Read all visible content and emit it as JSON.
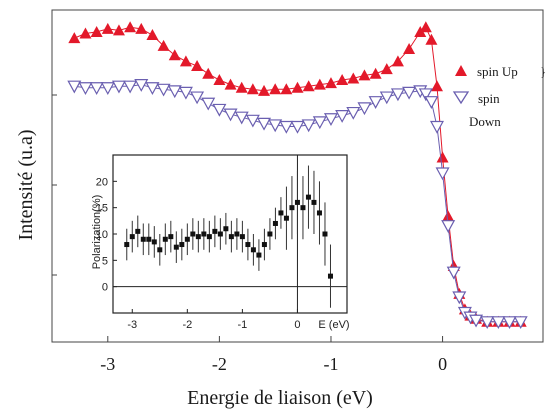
{
  "chart_data": [
    {
      "type": "scatter",
      "xlabel": "Energie de liaison (eV)",
      "ylabel": "Intensité (u.a)",
      "xlim": [
        -3.5,
        0.9
      ],
      "ylim": [
        0,
        1
      ],
      "x_ticks": [
        "-3",
        "-2",
        "-1",
        "0"
      ],
      "x_tick_values": [
        -3,
        -2,
        -1,
        0
      ],
      "grid": false,
      "legend": "right",
      "series": [
        {
          "name": "spin Up",
          "marker": "triangle-up",
          "color": "#e3192a",
          "x": [
            -3.3,
            -3.2,
            -3.1,
            -3.0,
            -2.9,
            -2.8,
            -2.7,
            -2.6,
            -2.5,
            -2.4,
            -2.3,
            -2.2,
            -2.1,
            -2.0,
            -1.9,
            -1.8,
            -1.7,
            -1.6,
            -1.5,
            -1.4,
            -1.3,
            -1.2,
            -1.1,
            -1.0,
            -0.9,
            -0.8,
            -0.7,
            -0.6,
            -0.5,
            -0.4,
            -0.3,
            -0.2,
            -0.15,
            -0.1,
            -0.05,
            0.0,
            0.05,
            0.1,
            0.15,
            0.2,
            0.25,
            0.3,
            0.4,
            0.5,
            0.6,
            0.7
          ],
          "y": [
            0.935,
            0.95,
            0.955,
            0.965,
            0.96,
            0.97,
            0.965,
            0.945,
            0.91,
            0.88,
            0.86,
            0.845,
            0.82,
            0.8,
            0.785,
            0.775,
            0.77,
            0.765,
            0.77,
            0.77,
            0.775,
            0.78,
            0.785,
            0.79,
            0.8,
            0.805,
            0.815,
            0.82,
            0.835,
            0.86,
            0.9,
            0.955,
            0.97,
            0.93,
            0.78,
            0.55,
            0.36,
            0.2,
            0.11,
            0.06,
            0.04,
            0.03,
            0.02,
            0.02,
            0.02,
            0.02
          ]
        },
        {
          "name": "spin Down",
          "marker": "triangle-down-open",
          "color": "#6a5fb0",
          "x": [
            -3.3,
            -3.2,
            -3.1,
            -3.0,
            -2.9,
            -2.8,
            -2.7,
            -2.6,
            -2.5,
            -2.4,
            -2.3,
            -2.2,
            -2.1,
            -2.0,
            -1.9,
            -1.8,
            -1.7,
            -1.6,
            -1.5,
            -1.4,
            -1.3,
            -1.2,
            -1.1,
            -1.0,
            -0.9,
            -0.8,
            -0.7,
            -0.6,
            -0.5,
            -0.4,
            -0.3,
            -0.2,
            -0.15,
            -0.1,
            -0.05,
            0.0,
            0.05,
            0.1,
            0.15,
            0.2,
            0.25,
            0.3,
            0.4,
            0.5,
            0.6,
            0.7
          ],
          "y": [
            0.78,
            0.775,
            0.775,
            0.775,
            0.78,
            0.78,
            0.785,
            0.775,
            0.77,
            0.765,
            0.76,
            0.745,
            0.725,
            0.705,
            0.69,
            0.68,
            0.67,
            0.66,
            0.655,
            0.65,
            0.65,
            0.655,
            0.665,
            0.675,
            0.685,
            0.695,
            0.71,
            0.73,
            0.745,
            0.755,
            0.76,
            0.765,
            0.755,
            0.73,
            0.65,
            0.5,
            0.33,
            0.18,
            0.1,
            0.05,
            0.035,
            0.025,
            0.02,
            0.02,
            0.02,
            0.02
          ]
        }
      ]
    },
    {
      "type": "scatter",
      "xlabel": "E (eV)",
      "ylabel": "Polarization(%)",
      "xlim": [
        -3.35,
        0.9
      ],
      "ylim": [
        -5,
        25
      ],
      "x_ticks": [
        "-3",
        "-2",
        "-1",
        "0"
      ],
      "x_tick_values": [
        -3,
        -2,
        -1,
        0
      ],
      "y_ticks": [
        "0",
        "5",
        "10",
        "15",
        "20"
      ],
      "y_tick_values": [
        0,
        5,
        10,
        15,
        20
      ],
      "grid": false,
      "series": [
        {
          "name": "",
          "marker": "square-errorbar",
          "color": "#111111",
          "x": [
            -3.1,
            -3.0,
            -2.9,
            -2.8,
            -2.7,
            -2.6,
            -2.5,
            -2.4,
            -2.3,
            -2.2,
            -2.1,
            -2.0,
            -1.9,
            -1.8,
            -1.7,
            -1.6,
            -1.5,
            -1.4,
            -1.3,
            -1.2,
            -1.1,
            -1.0,
            -0.9,
            -0.8,
            -0.7,
            -0.6,
            -0.5,
            -0.4,
            -0.3,
            -0.2,
            -0.1,
            0.0,
            0.1,
            0.2,
            0.3,
            0.4,
            0.5,
            0.6
          ],
          "y": [
            8,
            9.5,
            10.5,
            9,
            9,
            8.5,
            7,
            9,
            9.5,
            7.5,
            8,
            9,
            10,
            9.5,
            10,
            9.5,
            10.5,
            10,
            11,
            9.5,
            10,
            9.5,
            8,
            7,
            6,
            8,
            10,
            12,
            14,
            13,
            15,
            16,
            15,
            17,
            16,
            14,
            10,
            2
          ]
        }
      ]
    }
  ],
  "legend": {
    "up_label": "spin Up",
    "down_label": "spin",
    "down_label2": "Down"
  }
}
